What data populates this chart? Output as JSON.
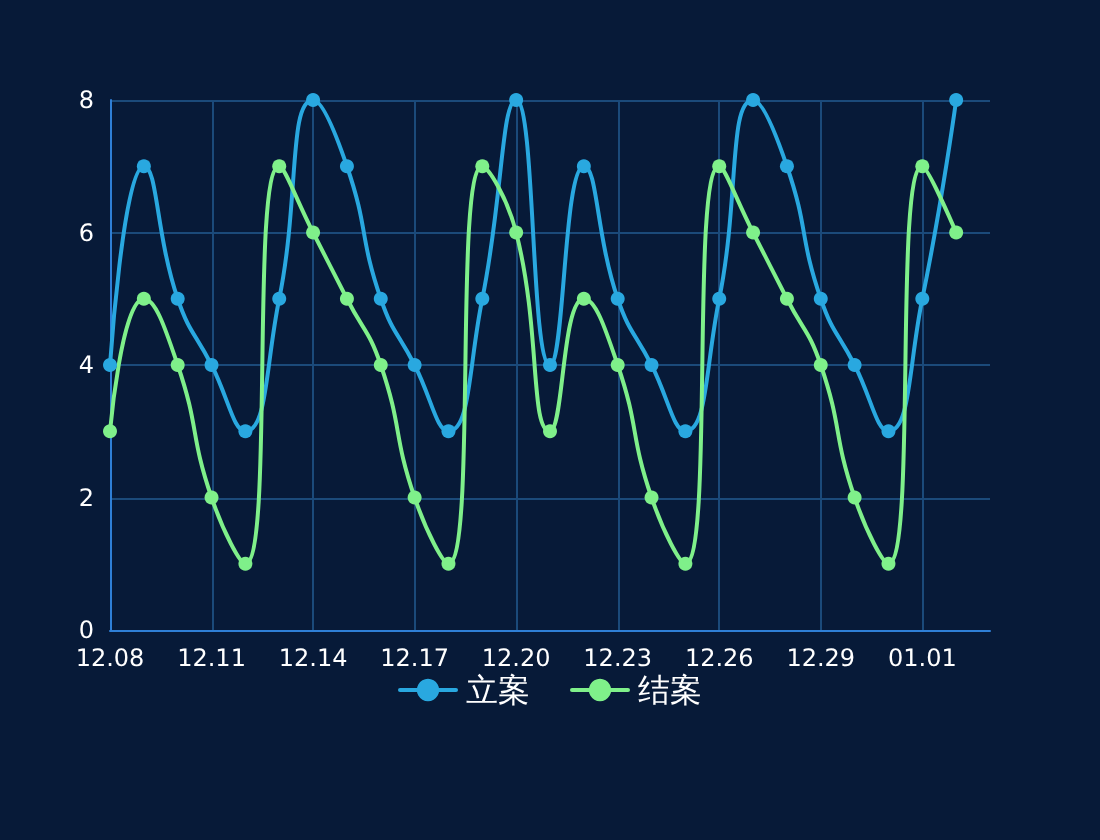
{
  "chart_data": {
    "type": "line",
    "categories": [
      "12.08",
      null,
      null,
      "12.11",
      null,
      null,
      "12.14",
      null,
      null,
      "12.17",
      null,
      null,
      "12.20",
      null,
      null,
      "12.23",
      null,
      null,
      "12.26",
      null,
      null,
      "12.29",
      null,
      null,
      "01.01",
      null,
      null
    ],
    "series": [
      {
        "name": "立案",
        "color": "#29a8e0",
        "values": [
          4,
          7,
          5,
          4,
          3,
          5,
          8,
          7,
          5,
          4,
          3,
          5,
          8,
          4,
          7,
          5,
          4,
          3,
          5,
          8,
          7,
          5,
          4,
          3,
          5,
          8,
          null
        ]
      },
      {
        "name": "结案",
        "color": "#7ff08a",
        "values": [
          3,
          5,
          4,
          2,
          1,
          7,
          6,
          5,
          4,
          2,
          1,
          7,
          6,
          3,
          5,
          4,
          2,
          1,
          7,
          6,
          5,
          4,
          2,
          1,
          7,
          6,
          null
        ]
      }
    ],
    "ylim": [
      0,
      8
    ],
    "yticks": [
      0,
      2,
      4,
      6,
      8
    ],
    "grid": true,
    "legend": "bottom",
    "marker": "circle",
    "line_style": "solid"
  }
}
